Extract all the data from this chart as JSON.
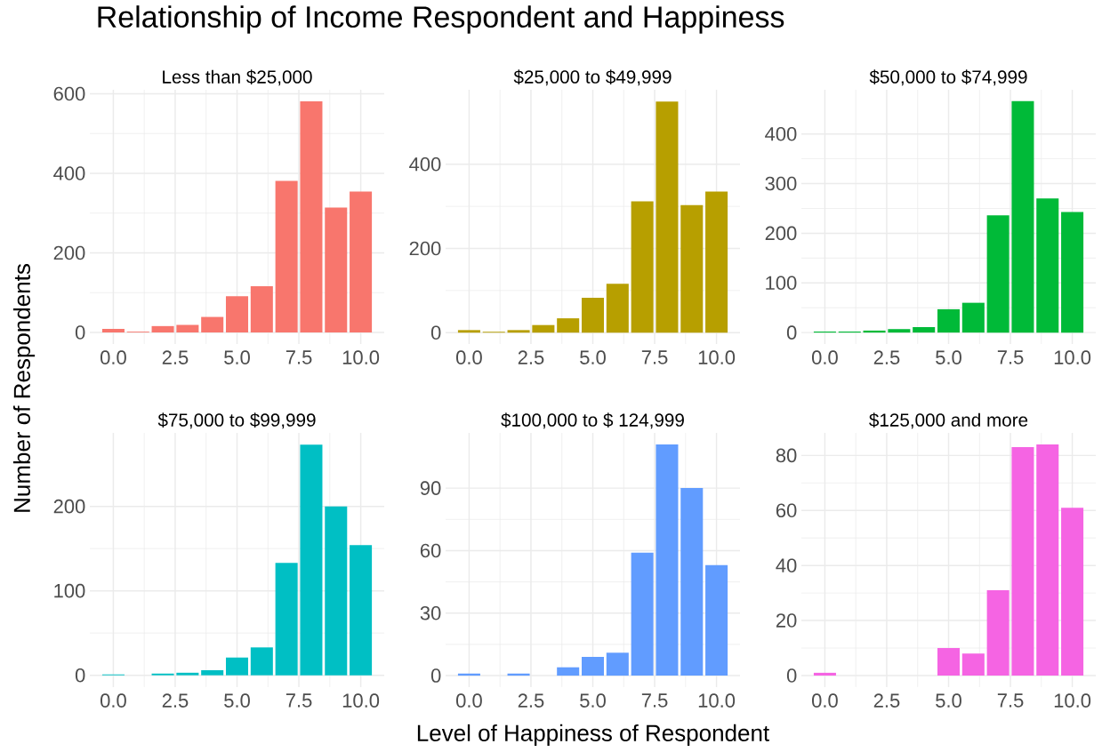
{
  "chart_data": [
    {
      "type": "bar",
      "title": "Less than $25,000",
      "annotations": [
        "Relationship of Income Respondent and Happiness"
      ],
      "ylabel": "Number of Respondents",
      "color": "#f8766d",
      "grid": true,
      "x": [
        0,
        1,
        2,
        3,
        4,
        5,
        6,
        7,
        8,
        9,
        10
      ],
      "values": [
        9,
        2,
        16,
        19,
        39,
        91,
        116,
        381,
        581,
        314,
        354
      ],
      "xlim": [
        -0.95,
        10.95
      ],
      "ylim": [
        -29,
        610
      ],
      "xticks": [
        {
          "value": 0,
          "label": "0.0"
        },
        {
          "value": 2.5,
          "label": "2.5"
        },
        {
          "value": 5,
          "label": "5.0"
        },
        {
          "value": 7.5,
          "label": "7.5"
        },
        {
          "value": 10,
          "label": "10.0"
        }
      ],
      "yticks": [
        0,
        200,
        400,
        600
      ]
    },
    {
      "type": "bar",
      "title": "$25,000 to $49,999",
      "color": "#b79f00",
      "grid": true,
      "x": [
        0,
        1,
        2,
        3,
        4,
        5,
        6,
        7,
        8,
        9,
        10
      ],
      "values": [
        6,
        2,
        6,
        18,
        34,
        83,
        116,
        312,
        549,
        303,
        335
      ],
      "xlim": [
        -0.95,
        10.95
      ],
      "ylim": [
        -27,
        577
      ],
      "xticks": [
        {
          "value": 0,
          "label": "0.0"
        },
        {
          "value": 2.5,
          "label": "2.5"
        },
        {
          "value": 5,
          "label": "5.0"
        },
        {
          "value": 7.5,
          "label": "7.5"
        },
        {
          "value": 10,
          "label": "10.0"
        }
      ],
      "yticks": [
        0,
        200,
        400
      ]
    },
    {
      "type": "bar",
      "title": "$50,000 to $74,999",
      "color": "#00ba38",
      "grid": true,
      "x": [
        0,
        1,
        2,
        3,
        4,
        5,
        6,
        7,
        8,
        9,
        10
      ],
      "values": [
        2,
        2,
        4,
        7,
        11,
        47,
        60,
        236,
        466,
        270,
        243
      ],
      "xlim": [
        -0.95,
        10.95
      ],
      "ylim": [
        -23,
        489
      ],
      "xticks": [
        {
          "value": 0,
          "label": "0.0"
        },
        {
          "value": 2.5,
          "label": "2.5"
        },
        {
          "value": 5,
          "label": "5.0"
        },
        {
          "value": 7.5,
          "label": "7.5"
        },
        {
          "value": 10,
          "label": "10.0"
        }
      ],
      "yticks": [
        0,
        100,
        200,
        300,
        400
      ]
    },
    {
      "type": "bar",
      "title": "$75,000 to $99,999",
      "color": "#00bfc4",
      "grid": true,
      "x": [
        0,
        1,
        2,
        3,
        4,
        5,
        6,
        7,
        8,
        9,
        10
      ],
      "values": [
        1,
        0,
        2,
        3,
        6,
        21,
        33,
        133,
        273,
        200,
        154
      ],
      "xlim": [
        -0.95,
        10.95
      ],
      "ylim": [
        -14,
        287
      ],
      "xticks": [
        {
          "value": 0,
          "label": "0.0"
        },
        {
          "value": 2.5,
          "label": "2.5"
        },
        {
          "value": 5,
          "label": "5.0"
        },
        {
          "value": 7.5,
          "label": "7.5"
        },
        {
          "value": 10,
          "label": "10.0"
        }
      ],
      "yticks": [
        0,
        100,
        200
      ]
    },
    {
      "type": "bar",
      "title": "$100,000 to $ 124,999",
      "xlabel": "Level of Happiness of Respondent",
      "color": "#619cff",
      "grid": true,
      "x": [
        0,
        1,
        2,
        3,
        4,
        5,
        6,
        7,
        8,
        9,
        10
      ],
      "values": [
        1,
        0,
        1,
        0,
        4,
        9,
        11,
        59,
        111,
        90,
        53
      ],
      "xlim": [
        -0.95,
        10.95
      ],
      "ylim": [
        -5.5,
        116.5
      ],
      "xticks": [
        {
          "value": 0,
          "label": "0.0"
        },
        {
          "value": 2.5,
          "label": "2.5"
        },
        {
          "value": 5,
          "label": "5.0"
        },
        {
          "value": 7.5,
          "label": "7.5"
        },
        {
          "value": 10,
          "label": "10.0"
        }
      ],
      "yticks": [
        0,
        30,
        60,
        90
      ]
    },
    {
      "type": "bar",
      "title": "$125,000 and more",
      "color": "#f564e3",
      "grid": true,
      "x": [
        0,
        1,
        2,
        3,
        4,
        5,
        6,
        7,
        8,
        9,
        10
      ],
      "values": [
        1,
        0,
        0,
        0,
        0,
        10,
        8,
        31,
        83,
        84,
        61
      ],
      "xlim": [
        -0.95,
        10.95
      ],
      "ylim": [
        -4.2,
        88.2
      ],
      "xticks": [
        {
          "value": 0,
          "label": "0.0"
        },
        {
          "value": 2.5,
          "label": "2.5"
        },
        {
          "value": 5,
          "label": "5.0"
        },
        {
          "value": 7.5,
          "label": "7.5"
        },
        {
          "value": 10,
          "label": "10.0"
        }
      ],
      "yticks": [
        0,
        20,
        40,
        60,
        80
      ]
    }
  ]
}
